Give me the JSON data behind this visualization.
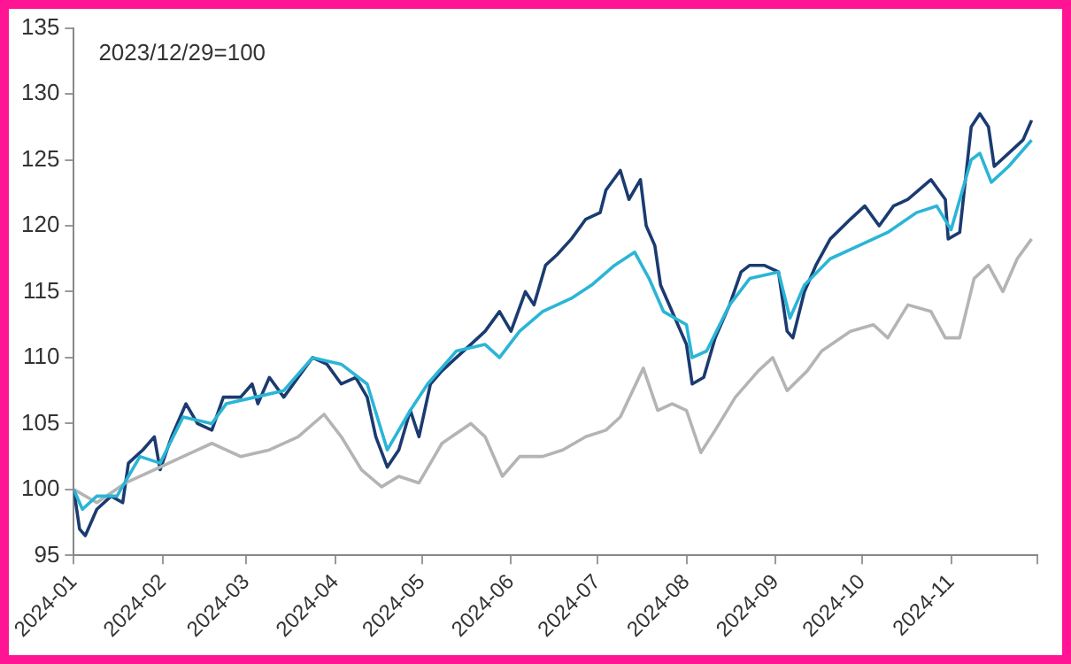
{
  "chart_data": {
    "type": "line",
    "annotations": [
      "2023/12/29=100"
    ],
    "xlim": [
      "2024-01",
      "2024-12"
    ],
    "xticks": [
      "2024-01",
      "2024-02",
      "2024-03",
      "2024-04",
      "2024-05",
      "2024-06",
      "2024-07",
      "2024-08",
      "2024-09",
      "2024-10",
      "2024-11",
      {
        "value": "2024-12",
        "label": null
      }
    ],
    "ylim": [
      95,
      135
    ],
    "yticks": [
      95,
      100,
      105,
      110,
      115,
      120,
      125,
      130,
      135
    ],
    "grid": false,
    "legend": false,
    "marker": "none",
    "line_style": "solid",
    "series": [
      {
        "color": "#2bb5d6",
        "x": [
          "2024-01-01",
          "2024-01-04",
          "2024-01-09",
          "2024-01-16",
          "2024-01-24",
          "2024-01-31",
          "2024-02-08",
          "2024-02-18",
          "2024-02-23",
          "2024-03-04",
          "2024-03-14",
          "2024-03-24",
          "2024-04-03",
          "2024-04-12",
          "2024-04-19",
          "2024-04-27",
          "2024-05-03",
          "2024-05-13",
          "2024-05-23",
          "2024-05-28",
          "2024-06-04",
          "2024-06-12",
          "2024-06-22",
          "2024-06-29",
          "2024-07-07",
          "2024-07-14",
          "2024-07-19",
          "2024-07-24",
          "2024-08-01",
          "2024-08-03",
          "2024-08-08",
          "2024-08-16",
          "2024-08-23",
          "2024-09-02",
          "2024-09-06",
          "2024-09-11",
          "2024-09-20",
          "2024-09-30",
          "2024-10-10",
          "2024-10-20",
          "2024-10-27",
          "2024-11-01",
          "2024-11-08",
          "2024-11-11",
          "2024-11-15",
          "2024-11-21",
          "2024-11-29"
        ],
        "values": [
          100,
          98.5,
          99.5,
          99.5,
          102.5,
          102,
          105.5,
          105,
          106.5,
          107,
          107.5,
          110,
          109.5,
          108,
          103,
          106,
          108,
          110.5,
          111,
          110,
          112,
          113.5,
          114.5,
          115.5,
          117,
          118,
          116,
          113.5,
          112.5,
          110,
          110.5,
          114,
          116,
          116.5,
          113,
          115.5,
          117.5,
          118.5,
          119.5,
          121,
          121.5,
          119.7,
          125,
          125.5,
          123.3,
          124.5,
          126.5
        ]
      },
      {
        "color": "#b4b4b4",
        "x": [
          "2024-01-01",
          "2024-01-09",
          "2024-01-19",
          "2024-01-29",
          "2024-02-08",
          "2024-02-18",
          "2024-02-28",
          "2024-03-09",
          "2024-03-19",
          "2024-03-28",
          "2024-04-03",
          "2024-04-10",
          "2024-04-17",
          "2024-04-23",
          "2024-04-30",
          "2024-05-08",
          "2024-05-18",
          "2024-05-23",
          "2024-05-29",
          "2024-06-04",
          "2024-06-12",
          "2024-06-19",
          "2024-06-27",
          "2024-07-04",
          "2024-07-09",
          "2024-07-17",
          "2024-07-22",
          "2024-07-27",
          "2024-08-01",
          "2024-08-06",
          "2024-08-11",
          "2024-08-18",
          "2024-08-26",
          "2024-08-31",
          "2024-09-05",
          "2024-09-12",
          "2024-09-17",
          "2024-09-27",
          "2024-10-05",
          "2024-10-10",
          "2024-10-17",
          "2024-10-25",
          "2024-10-30",
          "2024-11-04",
          "2024-11-09",
          "2024-11-14",
          "2024-11-19",
          "2024-11-24",
          "2024-11-29"
        ],
        "values": [
          100,
          99,
          100.5,
          101.5,
          102.5,
          103.5,
          102.5,
          103,
          104,
          105.7,
          104,
          101.5,
          100.2,
          101,
          100.5,
          103.5,
          105,
          104,
          101,
          102.5,
          102.5,
          103,
          104,
          104.5,
          105.5,
          109.2,
          106,
          106.5,
          106,
          102.8,
          104.5,
          107,
          109,
          110,
          107.5,
          109,
          110.5,
          112,
          112.5,
          111.5,
          114,
          113.5,
          111.5,
          111.5,
          116,
          117,
          115,
          117.5,
          119
        ]
      },
      {
        "color": "#1b3b70",
        "x": [
          "2024-01-01",
          "2024-01-03",
          "2024-01-05",
          "2024-01-09",
          "2024-01-14",
          "2024-01-18",
          "2024-01-20",
          "2024-01-25",
          "2024-01-29",
          "2024-01-31",
          "2024-02-04",
          "2024-02-09",
          "2024-02-13",
          "2024-02-18",
          "2024-02-22",
          "2024-02-28",
          "2024-03-03",
          "2024-03-05",
          "2024-03-09",
          "2024-03-14",
          "2024-03-19",
          "2024-03-24",
          "2024-03-29",
          "2024-04-03",
          "2024-04-08",
          "2024-04-12",
          "2024-04-15",
          "2024-04-19",
          "2024-04-23",
          "2024-04-27",
          "2024-04-30",
          "2024-05-04",
          "2024-05-08",
          "2024-05-13",
          "2024-05-18",
          "2024-05-23",
          "2024-05-28",
          "2024-06-01",
          "2024-06-06",
          "2024-06-09",
          "2024-06-13",
          "2024-06-17",
          "2024-06-22",
          "2024-06-27",
          "2024-07-02",
          "2024-07-04",
          "2024-07-09",
          "2024-07-12",
          "2024-07-16",
          "2024-07-18",
          "2024-07-21",
          "2024-07-23",
          "2024-07-28",
          "2024-08-01",
          "2024-08-03",
          "2024-08-07",
          "2024-08-11",
          "2024-08-16",
          "2024-08-20",
          "2024-08-23",
          "2024-08-28",
          "2024-09-02",
          "2024-09-05",
          "2024-09-07",
          "2024-09-11",
          "2024-09-15",
          "2024-09-20",
          "2024-09-27",
          "2024-10-02",
          "2024-10-07",
          "2024-10-12",
          "2024-10-17",
          "2024-10-25",
          "2024-10-30",
          "2024-10-31",
          "2024-11-04",
          "2024-11-08",
          "2024-11-11",
          "2024-11-14",
          "2024-11-16",
          "2024-11-21",
          "2024-11-26",
          "2024-11-29"
        ],
        "values": [
          100,
          97,
          96.5,
          98.5,
          99.5,
          99,
          102,
          103,
          104,
          101.5,
          104,
          106.5,
          105,
          104.5,
          107,
          107,
          108,
          106.5,
          108.5,
          107,
          108.5,
          110,
          109.5,
          108,
          108.5,
          107,
          104,
          101.7,
          103,
          106,
          104,
          108,
          109,
          110,
          111,
          112,
          113.5,
          112,
          115,
          114,
          117,
          117.8,
          119,
          120.5,
          121,
          122.7,
          124.2,
          122,
          123.5,
          120,
          118.5,
          115.5,
          113,
          111,
          108,
          108.5,
          111.5,
          114,
          116.5,
          117,
          117,
          116.5,
          112,
          111.5,
          115,
          117,
          119,
          120.5,
          121.5,
          120,
          121.5,
          122,
          123.5,
          122,
          119,
          119.5,
          127.5,
          128.5,
          127.5,
          124.5,
          125.5,
          126.5,
          128
        ]
      }
    ]
  }
}
